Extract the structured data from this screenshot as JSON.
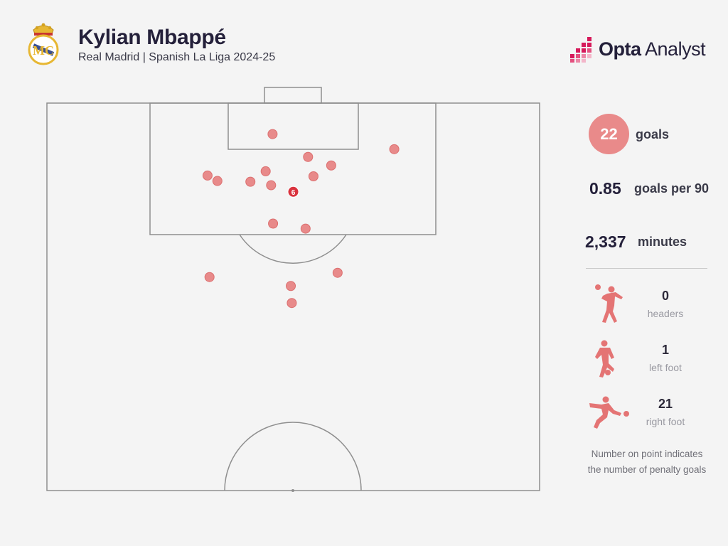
{
  "header": {
    "player_name": "Kylian Mbappé",
    "subtitle": "Real Madrid | Spanish La Liga 2024-25",
    "crest_icon": "real-madrid-crest-icon"
  },
  "brand": {
    "name_bold": "Opta",
    "name_rest": " Analyst",
    "icon": "opta-analyst-logo-icon",
    "accent": "#d6195a"
  },
  "stats": {
    "goals_value": "22",
    "goals_label": "goals",
    "per90_value": "0.85",
    "per90_label": "goals per 90",
    "minutes_value": "2,337",
    "minutes_label": "minutes"
  },
  "breakdown": [
    {
      "count": "0",
      "label": "headers",
      "icon": "header-player-icon"
    },
    {
      "count": "1",
      "label": "left foot",
      "icon": "left-foot-player-icon"
    },
    {
      "count": "21",
      "label": "right foot",
      "icon": "right-foot-player-icon"
    }
  ],
  "note": {
    "line1": "Number on point indicates",
    "line2": "the number of penalty goals"
  },
  "colors": {
    "shot_fill": "#e88a8a",
    "shot_stroke": "#dc6f6f",
    "penalty_fill": "#d9323d",
    "pitch_line": "#8f8f8f"
  },
  "chart_data": {
    "type": "scatter",
    "title": "",
    "xlabel": "",
    "ylabel": "",
    "x_unit": "pitch width (0 = left touchline, 100 = right touchline)",
    "y_unit": "distance from goal line (0 = goal line, 100 = halfway line)",
    "xlim": [
      0,
      100
    ],
    "ylim": [
      0,
      100
    ],
    "series": [
      {
        "points": [
          {
            "x": 45.8,
            "y": 8.0
          },
          {
            "x": 70.5,
            "y": 11.9
          },
          {
            "x": 53.0,
            "y": 13.9
          },
          {
            "x": 57.7,
            "y": 16.1
          },
          {
            "x": 44.4,
            "y": 17.6
          },
          {
            "x": 32.6,
            "y": 18.7
          },
          {
            "x": 54.1,
            "y": 18.9
          },
          {
            "x": 34.6,
            "y": 20.1
          },
          {
            "x": 41.3,
            "y": 20.3
          },
          {
            "x": 45.5,
            "y": 21.2
          },
          {
            "x": 45.9,
            "y": 31.1
          },
          {
            "x": 52.5,
            "y": 32.4
          },
          {
            "x": 59.0,
            "y": 43.8
          },
          {
            "x": 33.0,
            "y": 44.9
          },
          {
            "x": 49.5,
            "y": 47.2
          },
          {
            "x": 49.7,
            "y": 51.6
          }
        ]
      }
    ],
    "penalty": {
      "x": 50.0,
      "y": 22.9,
      "count": "6"
    }
  }
}
